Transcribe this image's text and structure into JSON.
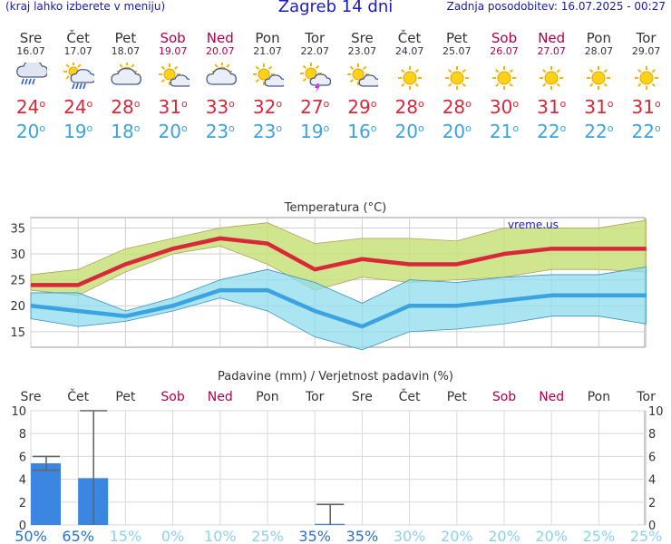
{
  "header": {
    "menu_hint": "(kraj lahko izberete v meniju)",
    "title": "Zagreb 14 dni",
    "updated": "Zadnja posodobitev: 16.07.2025 - 00:27"
  },
  "days": [
    {
      "name": "Sre",
      "date": "16.07",
      "weekend": false,
      "icon": "rain-heavy-cloud-icon",
      "max": "24",
      "min": "20"
    },
    {
      "name": "Čet",
      "date": "17.07",
      "weekend": false,
      "icon": "sun-cloud-rain-icon",
      "max": "24",
      "min": "19"
    },
    {
      "name": "Pet",
      "date": "18.07",
      "weekend": false,
      "icon": "sun-behind-cloud-icon",
      "max": "28",
      "min": "18"
    },
    {
      "name": "Sob",
      "date": "19.07",
      "weekend": true,
      "icon": "sun-small-cloud-icon",
      "max": "31",
      "min": "20"
    },
    {
      "name": "Ned",
      "date": "20.07",
      "weekend": true,
      "icon": "sun-behind-cloud-icon",
      "max": "33",
      "min": "23"
    },
    {
      "name": "Pon",
      "date": "21.07",
      "weekend": false,
      "icon": "sun-small-cloud-icon",
      "max": "32",
      "min": "23"
    },
    {
      "name": "Tor",
      "date": "22.07",
      "weekend": false,
      "icon": "sun-cloud-storm-icon",
      "max": "27",
      "min": "19"
    },
    {
      "name": "Sre",
      "date": "23.07",
      "weekend": false,
      "icon": "sun-small-cloud-icon",
      "max": "29",
      "min": "16"
    },
    {
      "name": "Čet",
      "date": "24.07",
      "weekend": false,
      "icon": "sun-icon",
      "max": "28",
      "min": "20"
    },
    {
      "name": "Pet",
      "date": "25.07",
      "weekend": false,
      "icon": "sun-icon",
      "max": "28",
      "min": "20"
    },
    {
      "name": "Sob",
      "date": "26.07",
      "weekend": true,
      "icon": "sun-icon",
      "max": "30",
      "min": "21"
    },
    {
      "name": "Ned",
      "date": "27.07",
      "weekend": true,
      "icon": "sun-icon",
      "max": "31",
      "min": "22"
    },
    {
      "name": "Pon",
      "date": "28.07",
      "weekend": false,
      "icon": "sun-icon",
      "max": "31",
      "min": "22"
    },
    {
      "name": "Tor",
      "date": "29.07",
      "weekend": false,
      "icon": "sun-icon",
      "max": "31",
      "min": "22"
    }
  ],
  "colors": {
    "max_line": "#d8283a",
    "max_band": "#c7e07a",
    "min_line": "#3aa3e0",
    "min_band": "#8fdcec",
    "bar": "#3a86e0",
    "weekend": "#b0004a",
    "prob_high": "#2b6fd6",
    "prob_low": "#8fd0ee"
  },
  "chart_data": [
    {
      "type": "line",
      "title": "Temperatura (°C)",
      "watermark": "vreme.us",
      "ylim": [
        12,
        37
      ],
      "yticks": [
        "15",
        "20",
        "25",
        "30",
        "35"
      ],
      "series": [
        {
          "values": [
            24,
            24,
            28,
            31,
            33,
            32,
            27,
            29,
            28,
            28,
            30,
            31,
            31,
            31
          ],
          "upper": [
            26,
            27,
            31,
            33,
            35,
            36,
            32,
            33,
            33,
            32.5,
            35,
            35,
            35,
            36.5
          ],
          "lower": [
            23,
            22,
            26.5,
            30,
            31.5,
            28,
            23,
            25.5,
            24.5,
            25,
            25.5,
            27,
            27,
            26.5
          ]
        },
        {
          "values": [
            20,
            19,
            18,
            20,
            23,
            23,
            19,
            16,
            20,
            20,
            21,
            22,
            22,
            22
          ],
          "upper": [
            22.5,
            22.5,
            19,
            21.5,
            25,
            27,
            24.5,
            20.5,
            25,
            24.5,
            25.5,
            26,
            26,
            27.5
          ],
          "lower": [
            17.5,
            16,
            17,
            19,
            21.5,
            19,
            14,
            11.5,
            15,
            15.5,
            16.5,
            18,
            18,
            16.5
          ]
        }
      ]
    },
    {
      "type": "bar",
      "title": "Padavine (mm) / Verjetnost padavin (%)",
      "categories": [
        "Sre",
        "Čet",
        "Pet",
        "Sob",
        "Ned",
        "Pon",
        "Tor",
        "Sre",
        "Čet",
        "Pet",
        "Sob",
        "Ned",
        "Pon",
        "Tor"
      ],
      "ylim": [
        0,
        10
      ],
      "yticks": [
        "0",
        "2",
        "4",
        "6",
        "8",
        "10"
      ],
      "values": [
        5.4,
        4.1,
        0,
        0,
        0,
        0,
        0.1,
        0,
        0,
        0,
        0,
        0,
        0,
        0
      ],
      "error_high": [
        6,
        10,
        0,
        0,
        0,
        0,
        1.8,
        0,
        0,
        0,
        0,
        0,
        0,
        0
      ],
      "error_low": [
        4.8,
        0,
        0,
        0,
        0,
        0,
        0,
        0,
        0,
        0,
        0,
        0,
        0,
        0
      ],
      "probability": [
        "50%",
        "65%",
        "15%",
        "0%",
        "10%",
        "25%",
        "35%",
        "35%",
        "30%",
        "20%",
        "20%",
        "20%",
        "25%",
        "25%"
      ]
    }
  ]
}
